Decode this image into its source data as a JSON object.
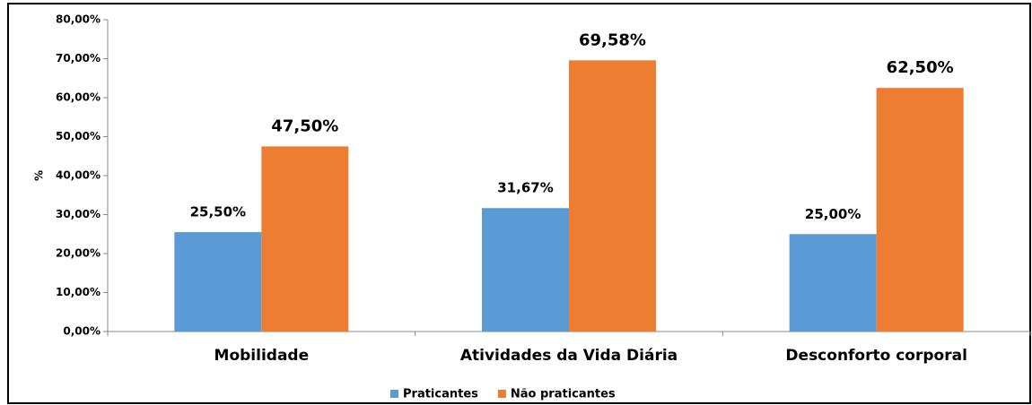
{
  "chart_data": {
    "type": "bar",
    "ylabel": "%",
    "categories": [
      "Mobilidade",
      "Atividades da Vida Diária",
      "Desconforto corporal"
    ],
    "series": [
      {
        "name": "Praticantes",
        "color": "#5b9bd5",
        "values": [
          25.5,
          31.67,
          25.0
        ],
        "value_labels": [
          "25,50%",
          "31,67%",
          "25,00%"
        ]
      },
      {
        "name": "Não praticantes",
        "color": "#ed7d31",
        "values": [
          47.5,
          69.58,
          62.5
        ],
        "value_labels": [
          "47,50%",
          "69,58%",
          "62,50%"
        ]
      }
    ],
    "ylim": [
      0,
      80
    ],
    "yticks": [
      {
        "value": 0,
        "label": "0,00%"
      },
      {
        "value": 10,
        "label": "10,00%"
      },
      {
        "value": 20,
        "label": "20,00%"
      },
      {
        "value": 30,
        "label": "30,00%"
      },
      {
        "value": 40,
        "label": "40,00%"
      },
      {
        "value": 50,
        "label": "50,00%"
      },
      {
        "value": 60,
        "label": "60,00%"
      },
      {
        "value": 70,
        "label": "70,00%"
      },
      {
        "value": 80,
        "label": "80,00%"
      }
    ],
    "legend": "bottom"
  }
}
